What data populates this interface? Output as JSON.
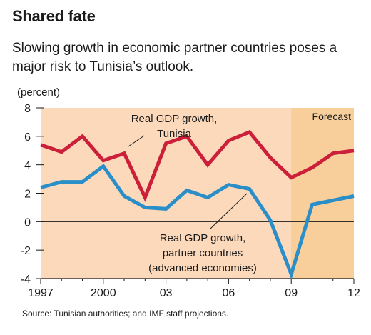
{
  "title": "Shared fate",
  "subtitle": "Slowing growth in economic partner countries poses a major risk to Tunisia’s outlook.",
  "unit_label": "(percent)",
  "source": "Source: Tunisian authorities; and IMF staff projections.",
  "forecast_label": "Forecast",
  "colors": {
    "plot_background": "#fcd9bb",
    "forecast_background": "#f8cf9a",
    "tunisia_line": "#cc1f3a",
    "partner_line": "#2a8fc8"
  },
  "chart_data": {
    "type": "line",
    "x": [
      1997,
      1998,
      1999,
      2000,
      2001,
      2002,
      2003,
      2004,
      2005,
      2006,
      2007,
      2008,
      2009,
      2010,
      2011,
      2012
    ],
    "x_tick_values": [
      1997,
      2000,
      2003,
      2006,
      2009,
      2012
    ],
    "x_tick_labels": [
      "1997",
      "2000",
      "03",
      "06",
      "09",
      "12"
    ],
    "y_ticks": [
      -4,
      -2,
      0,
      2,
      4,
      6,
      8
    ],
    "ylim": [
      -4,
      8
    ],
    "xlim": [
      1997,
      2012
    ],
    "forecast_start": 2009,
    "series": [
      {
        "name": "Real GDP growth, Tunisia",
        "label_lines": [
          "Real GDP growth,",
          "Tunisia"
        ],
        "values": [
          5.4,
          4.9,
          6.0,
          4.3,
          4.8,
          1.7,
          5.5,
          6.0,
          4.0,
          5.7,
          6.3,
          4.5,
          3.1,
          3.8,
          4.8,
          5.0
        ]
      },
      {
        "name": "Real GDP growth, partner countries (advanced economies)",
        "label_lines": [
          "Real GDP growth,",
          "partner countries",
          "(advanced economies)"
        ],
        "values": [
          2.4,
          2.8,
          2.8,
          3.9,
          1.8,
          1.0,
          0.9,
          2.2,
          1.7,
          2.6,
          2.3,
          0.1,
          -3.7,
          1.2,
          1.5,
          1.8
        ]
      }
    ]
  }
}
